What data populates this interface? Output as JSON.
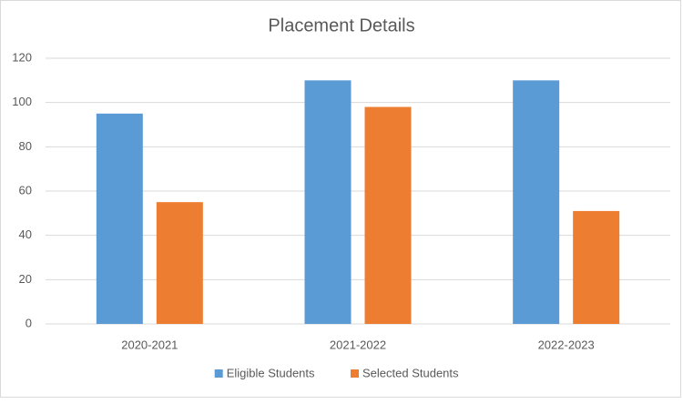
{
  "chart_data": {
    "type": "bar",
    "title": "Placement Details",
    "categories": [
      "2020-2021",
      "2021-2022",
      "2022-2023"
    ],
    "series": [
      {
        "name": "Eligible Students",
        "color": "#5b9bd5",
        "values": [
          95,
          110,
          110
        ]
      },
      {
        "name": "Selected Students",
        "color": "#ed7d31",
        "values": [
          55,
          98,
          51
        ]
      }
    ],
    "ylim": [
      0,
      120
    ],
    "yticks": [
      0,
      20,
      40,
      60,
      80,
      100,
      120
    ],
    "grid": true,
    "legend": "bottom"
  }
}
